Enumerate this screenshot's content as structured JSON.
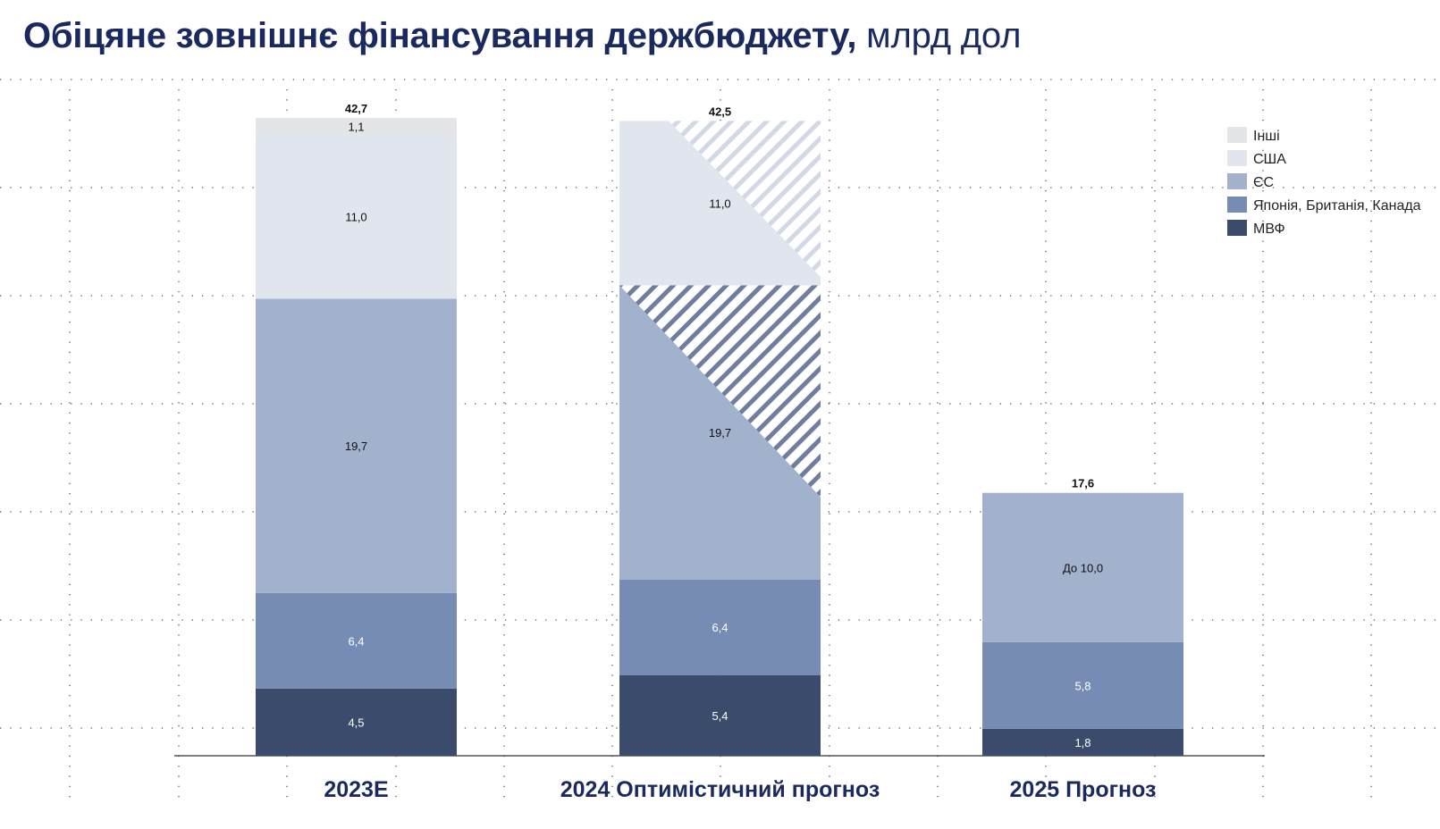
{
  "title": {
    "bold": "Обіцяне зовнішнє фінансування держбюджету,",
    "light": "млрд дол"
  },
  "colors": {
    "Інші": "#e4e5e7",
    "США": "#e0e5ee",
    "ЄС": "#a2b1cc",
    "Японія, Британія, Канада": "#768cb4",
    "МВФ": "#3b4b6b",
    "title": "#1b2a5e"
  },
  "chart_data": {
    "type": "bar",
    "stacked": true,
    "categories": [
      "2023E",
      "2024 Оптимістичний прогноз",
      "2025 Прогноз"
    ],
    "series": [
      {
        "name": "МВФ",
        "values": [
          4.5,
          5.4,
          1.8
        ],
        "labels": [
          "4,5",
          "5,4",
          "1,8"
        ]
      },
      {
        "name": "Японія, Британія, Канада",
        "values": [
          6.4,
          6.4,
          5.8
        ],
        "labels": [
          "6,4",
          "6,4",
          "5,8"
        ]
      },
      {
        "name": "ЄС",
        "values": [
          19.7,
          19.7,
          10.0
        ],
        "labels": [
          "19,7",
          "19,7",
          "До 10,0"
        ]
      },
      {
        "name": "США",
        "values": [
          11.0,
          11.0,
          0
        ],
        "labels": [
          "11,0",
          "11,0",
          ""
        ]
      },
      {
        "name": "Інші",
        "values": [
          1.1,
          0,
          0
        ],
        "labels": [
          "1,1",
          "",
          ""
        ]
      }
    ],
    "totals": [
      "42,7",
      "42,5",
      "17,6"
    ],
    "uncertain": [
      {
        "category": "2024 Оптимістичний прогноз",
        "series": "ЄС",
        "style": "hatched"
      },
      {
        "category": "2024 Оптимістичний прогноз",
        "series": "США",
        "style": "hatched"
      }
    ],
    "legend": [
      "Інші",
      "США",
      "ЄС",
      "Японія, Британія, Канада",
      "МВФ"
    ],
    "legend_position": "top-right",
    "ylim": [
      0,
      45
    ],
    "grid": true
  }
}
